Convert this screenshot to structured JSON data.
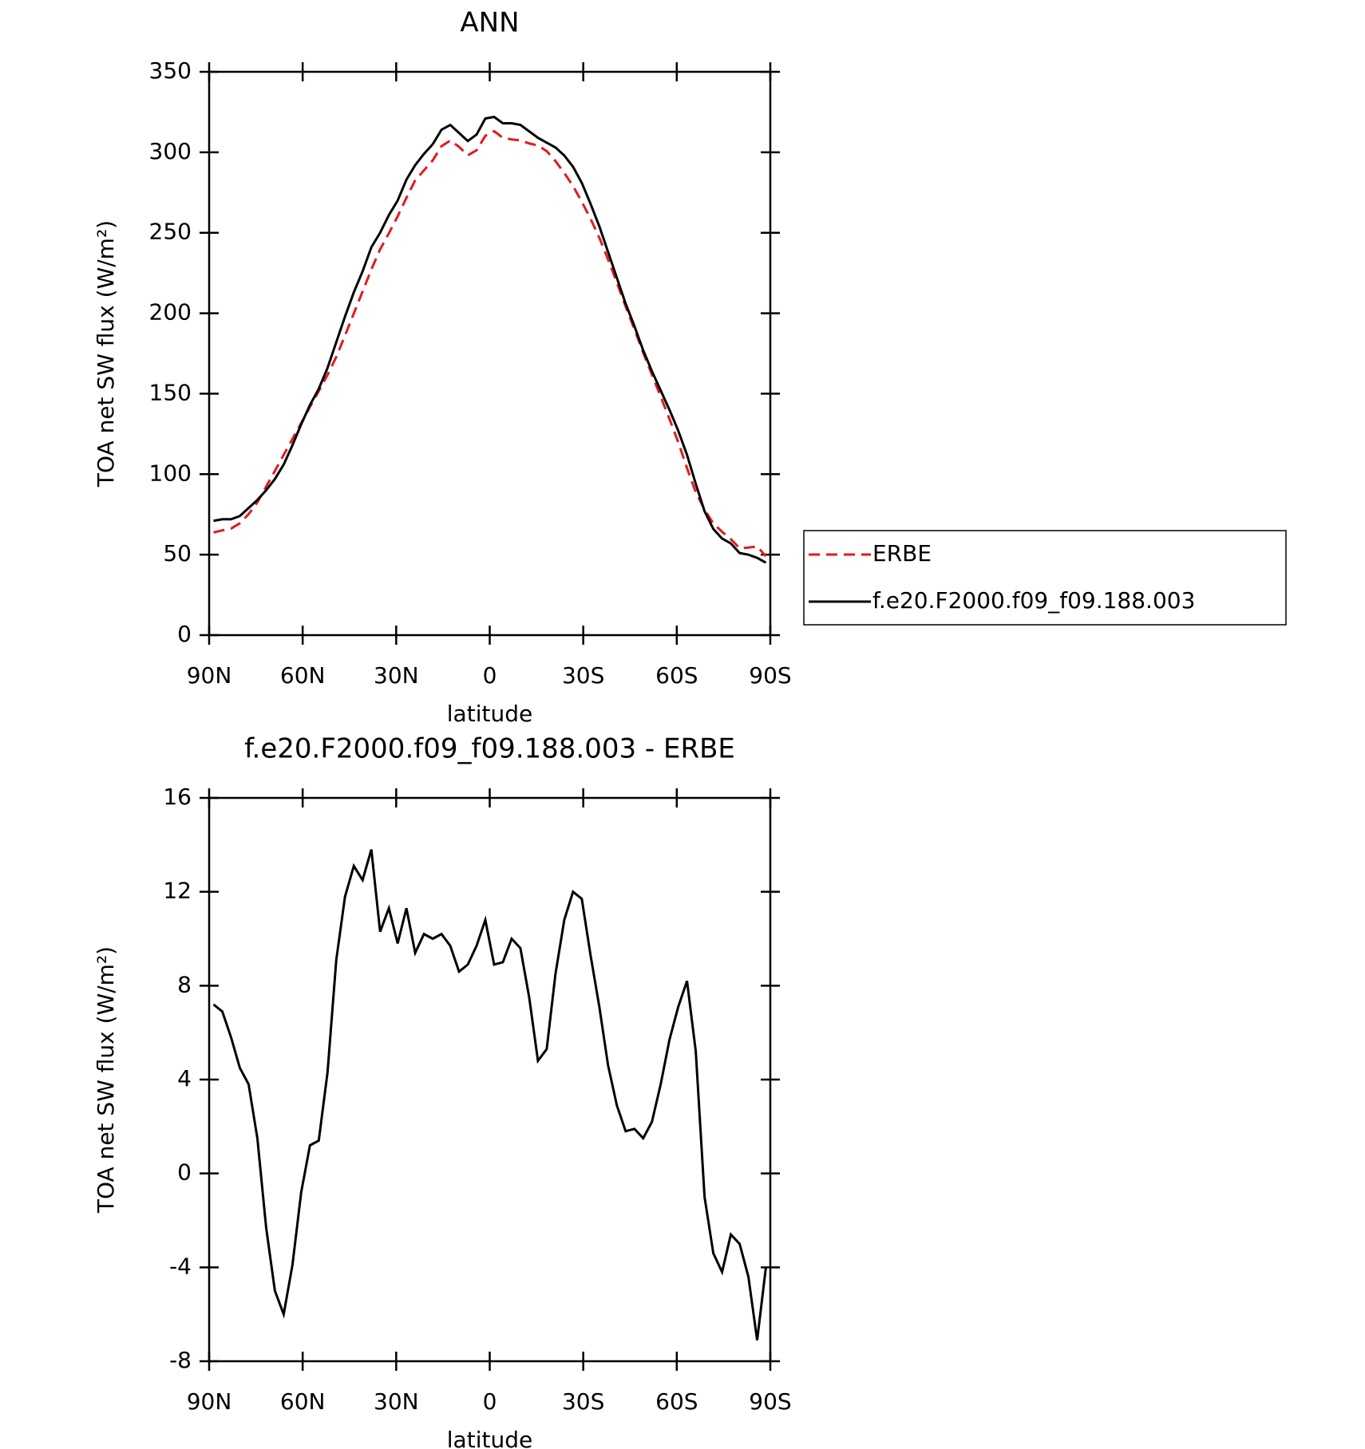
{
  "chart_data": [
    {
      "type": "line",
      "title": "ANN",
      "xlabel": "latitude",
      "ylabel": "TOA net SW flux (W/m²)",
      "x": [
        88.59,
        85.78,
        82.97,
        80.16,
        77.34,
        74.53,
        71.72,
        68.91,
        66.09,
        63.28,
        60.47,
        57.66,
        54.84,
        52.03,
        49.22,
        46.41,
        43.59,
        40.78,
        37.97,
        35.16,
        32.34,
        29.53,
        26.72,
        23.91,
        21.09,
        18.28,
        15.47,
        12.66,
        9.84,
        7.03,
        4.22,
        1.41,
        -1.41,
        -4.22,
        -7.03,
        -9.84,
        -12.66,
        -15.47,
        -18.28,
        -21.09,
        -23.91,
        -26.72,
        -29.53,
        -32.34,
        -35.16,
        -37.97,
        -40.78,
        -43.59,
        -46.41,
        -49.22,
        -52.03,
        -54.84,
        -57.66,
        -60.47,
        -63.28,
        -66.09,
        -68.91,
        -71.72,
        -74.53,
        -77.34,
        -80.16,
        -82.97,
        -85.78,
        -88.59
      ],
      "series": [
        {
          "name": "ERBE",
          "color": "#e41a1c",
          "linestyle": "dashed",
          "values": [
            63.8,
            65.1,
            66.2,
            69.5,
            75.2,
            82.5,
            92.3,
            102,
            112,
            121.9,
            131.8,
            141.8,
            151.6,
            161.7,
            172.9,
            186.2,
            199.9,
            213.5,
            227.2,
            239.7,
            249.7,
            260.2,
            271.7,
            282.6,
            288.8,
            295,
            303.8,
            307.3,
            303.4,
            298.1,
            301.3,
            310.2,
            313.1,
            309,
            308,
            307.4,
            305.5,
            304.2,
            300.7,
            294.5,
            287.2,
            279,
            269.3,
            258.7,
            246.9,
            233.4,
            219.1,
            204.2,
            190.1,
            175.5,
            161.8,
            148.2,
            134.3,
            119.9,
            103.8,
            88.8,
            78,
            69.4,
            64.2,
            59.6,
            54,
            54.4,
            55.1,
            49
          ]
        },
        {
          "name": "f.e20.F2000.f09_f09.188.003",
          "color": "#000000",
          "linestyle": "solid",
          "values": [
            71,
            72,
            72,
            74,
            79,
            84,
            90,
            97,
            106,
            118,
            131,
            143,
            153,
            166,
            182,
            198,
            213,
            226,
            241,
            250,
            261,
            270,
            283,
            292,
            299,
            305,
            314,
            317,
            312,
            307,
            311,
            321,
            322,
            318,
            318,
            317,
            313,
            309,
            306,
            303,
            298,
            291,
            281,
            268,
            254,
            238,
            222,
            206,
            192,
            177,
            164,
            152,
            140,
            127,
            112,
            94,
            77,
            66,
            60,
            57,
            51,
            50,
            48,
            45
          ]
        }
      ],
      "xlim": [
        90,
        -90
      ],
      "xticks": [
        {
          "value": 90,
          "label": "90N"
        },
        {
          "value": 60,
          "label": "60N"
        },
        {
          "value": 30,
          "label": "30N"
        },
        0,
        {
          "value": -30,
          "label": "30S"
        },
        {
          "value": -60,
          "label": "60S"
        },
        {
          "value": -90,
          "label": "90S"
        }
      ],
      "ylim": [
        0,
        350
      ],
      "yticks": [
        0,
        50,
        100,
        150,
        200,
        250,
        300,
        350
      ],
      "legend": "right"
    },
    {
      "type": "line",
      "title": "f.e20.F2000.f09_f09.188.003 - ERBE",
      "xlabel": "latitude",
      "ylabel": "TOA net SW flux (W/m²)",
      "x": [
        88.59,
        85.78,
        82.97,
        80.16,
        77.34,
        74.53,
        71.72,
        68.91,
        66.09,
        63.28,
        60.47,
        57.66,
        54.84,
        52.03,
        49.22,
        46.41,
        43.59,
        40.78,
        37.97,
        35.16,
        32.34,
        29.53,
        26.72,
        23.91,
        21.09,
        18.28,
        15.47,
        12.66,
        9.84,
        7.03,
        4.22,
        1.41,
        -1.41,
        -4.22,
        -7.03,
        -9.84,
        -12.66,
        -15.47,
        -18.28,
        -21.09,
        -23.91,
        -26.72,
        -29.53,
        -32.34,
        -35.16,
        -37.97,
        -40.78,
        -43.59,
        -46.41,
        -49.22,
        -52.03,
        -54.84,
        -57.66,
        -60.47,
        -63.28,
        -66.09,
        -68.91,
        -71.72,
        -74.53,
        -77.34,
        -80.16,
        -82.97,
        -85.78,
        -88.59
      ],
      "values": [
        7.2,
        6.9,
        5.8,
        4.5,
        3.8,
        1.5,
        -2.3,
        -5.0,
        -6.0,
        -3.9,
        -0.8,
        1.2,
        1.4,
        4.3,
        9.1,
        11.8,
        13.1,
        12.5,
        13.8,
        10.3,
        11.3,
        9.8,
        11.3,
        9.4,
        10.2,
        10.0,
        10.2,
        9.7,
        8.6,
        8.9,
        9.7,
        10.8,
        8.9,
        9.0,
        10.0,
        9.6,
        7.5,
        4.8,
        5.3,
        8.5,
        10.8,
        12.0,
        11.7,
        9.3,
        7.1,
        4.6,
        2.9,
        1.8,
        1.9,
        1.5,
        2.2,
        3.8,
        5.7,
        7.1,
        8.2,
        5.2,
        -1.0,
        -3.4,
        -4.2,
        -2.6,
        -3.0,
        -4.4,
        -7.1,
        -4.0
      ],
      "color": "#000000",
      "xlim": [
        90,
        -90
      ],
      "xticks": [
        {
          "value": 90,
          "label": "90N"
        },
        {
          "value": 60,
          "label": "60N"
        },
        {
          "value": 30,
          "label": "30N"
        },
        0,
        {
          "value": -30,
          "label": "30S"
        },
        {
          "value": -60,
          "label": "60S"
        },
        {
          "value": -90,
          "label": "90S"
        }
      ],
      "ylim": [
        -8,
        16
      ],
      "yticks": [
        -8,
        -4,
        0,
        4,
        8,
        12,
        16
      ]
    }
  ]
}
